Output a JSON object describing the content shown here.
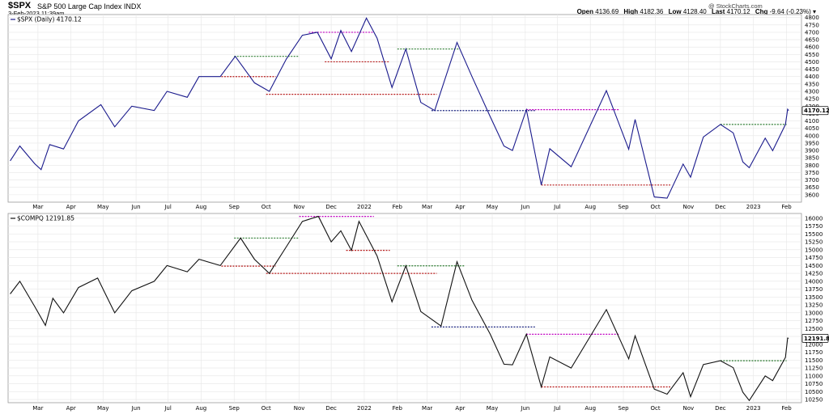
{
  "header": {
    "symbol": "$SPX",
    "name": "S&P 500 Large Cap Index INDX",
    "datetime": "3-Feb-2023 11:39am",
    "watermark": "@ StockCharts.com",
    "open_label": "Open",
    "open": "4136.69",
    "high_label": "High",
    "high": "4182.36",
    "low_label": "Low",
    "low": "4128.40",
    "last_label": "Last",
    "last": "4170.12",
    "chg_label": "Chg",
    "chg": "-9.64 (-0.23%)"
  },
  "colors": {
    "spx_line": "#1a1a8c",
    "compq_line": "#111111",
    "grid": "#e6e6e6",
    "green": "#2e7d32",
    "red": "#b71c1c",
    "magenta": "#c000c0",
    "blue": "#1a237e"
  },
  "chart_data": [
    {
      "type": "line",
      "legend": "$SPX (Daily) 4170.12",
      "last_label": "4170.12",
      "ylim": [
        3550,
        4820
      ],
      "yticks": [
        "3600",
        "3650",
        "3700",
        "3750",
        "3800",
        "3850",
        "3900",
        "3950",
        "4000",
        "4050",
        "4100",
        "4150",
        "4200",
        "4250",
        "4300",
        "4350",
        "4400",
        "4450",
        "4500",
        "4550",
        "4600",
        "4650",
        "4700",
        "4750",
        "4800"
      ],
      "x_start": "2021-02-01",
      "x_end": "2023-02-15",
      "months": [
        [
          "2021-03-01",
          "Mar"
        ],
        [
          "2021-04-01",
          "Apr"
        ],
        [
          "2021-05-01",
          "May"
        ],
        [
          "2021-06-01",
          "Jun"
        ],
        [
          "2021-07-01",
          "Jul"
        ],
        [
          "2021-08-01",
          "Aug"
        ],
        [
          "2021-09-01",
          "Sep"
        ],
        [
          "2021-10-01",
          "Oct"
        ],
        [
          "2021-11-01",
          "Nov"
        ],
        [
          "2021-12-01",
          "Dec"
        ],
        [
          "2022-01-01",
          "2022"
        ],
        [
          "2022-02-01",
          "Feb"
        ],
        [
          "2022-03-01",
          "Mar"
        ],
        [
          "2022-04-01",
          "Apr"
        ],
        [
          "2022-05-01",
          "May"
        ],
        [
          "2022-06-01",
          "Jun"
        ],
        [
          "2022-07-01",
          "Jul"
        ],
        [
          "2022-08-01",
          "Aug"
        ],
        [
          "2022-09-01",
          "Sep"
        ],
        [
          "2022-10-01",
          "Oct"
        ],
        [
          "2022-11-01",
          "Nov"
        ],
        [
          "2022-12-01",
          "Dec"
        ],
        [
          "2023-01-01",
          "2023"
        ],
        [
          "2023-02-01",
          "Feb"
        ]
      ],
      "points": [
        [
          "2021-02-03",
          3830
        ],
        [
          "2021-02-12",
          3930
        ],
        [
          "2021-02-26",
          3810
        ],
        [
          "2021-03-04",
          3770
        ],
        [
          "2021-03-12",
          3940
        ],
        [
          "2021-03-25",
          3910
        ],
        [
          "2021-04-08",
          4100
        ],
        [
          "2021-04-29",
          4210
        ],
        [
          "2021-05-12",
          4060
        ],
        [
          "2021-05-28",
          4200
        ],
        [
          "2021-06-18",
          4170
        ],
        [
          "2021-06-30",
          4300
        ],
        [
          "2021-07-19",
          4260
        ],
        [
          "2021-07-30",
          4400
        ],
        [
          "2021-08-19",
          4400
        ],
        [
          "2021-09-02",
          4537
        ],
        [
          "2021-09-20",
          4358
        ],
        [
          "2021-10-04",
          4300
        ],
        [
          "2021-10-20",
          4520
        ],
        [
          "2021-11-04",
          4680
        ],
        [
          "2021-11-18",
          4700
        ],
        [
          "2021-12-01",
          4520
        ],
        [
          "2021-12-10",
          4712
        ],
        [
          "2021-12-20",
          4570
        ],
        [
          "2022-01-03",
          4796
        ],
        [
          "2022-01-13",
          4660
        ],
        [
          "2022-01-27",
          4326
        ],
        [
          "2022-02-09",
          4587
        ],
        [
          "2022-02-23",
          4225
        ],
        [
          "2022-03-08",
          4170
        ],
        [
          "2022-03-29",
          4631
        ],
        [
          "2022-04-12",
          4400
        ],
        [
          "2022-04-29",
          4130
        ],
        [
          "2022-05-12",
          3930
        ],
        [
          "2022-05-20",
          3900
        ],
        [
          "2022-06-02",
          4176
        ],
        [
          "2022-06-16",
          3666
        ],
        [
          "2022-06-24",
          3912
        ],
        [
          "2022-07-14",
          3790
        ],
        [
          "2022-08-16",
          4305
        ],
        [
          "2022-09-06",
          3908
        ],
        [
          "2022-09-12",
          4110
        ],
        [
          "2022-09-30",
          3585
        ],
        [
          "2022-10-12",
          3577
        ],
        [
          "2022-10-27",
          3808
        ],
        [
          "2022-11-03",
          3719
        ],
        [
          "2022-11-15",
          3991
        ],
        [
          "2022-12-01",
          4076
        ],
        [
          "2022-12-13",
          4019
        ],
        [
          "2022-12-22",
          3822
        ],
        [
          "2022-12-28",
          3783
        ],
        [
          "2023-01-12",
          3983
        ],
        [
          "2023-01-19",
          3898
        ],
        [
          "2023-01-31",
          4076
        ],
        [
          "2023-02-02",
          4179
        ],
        [
          "2023-02-03",
          4170
        ]
      ],
      "levels": [
        {
          "color": "green",
          "y": 4537,
          "x0": "2021-09-01",
          "x1": "2021-10-31"
        },
        {
          "color": "red",
          "y": 4400,
          "x0": "2021-08-20",
          "x1": "2021-10-10"
        },
        {
          "color": "red",
          "y": 4280,
          "x0": "2021-10-01",
          "x1": "2022-03-10"
        },
        {
          "color": "magenta",
          "y": 4700,
          "x0": "2021-11-10",
          "x1": "2022-01-10"
        },
        {
          "color": "red",
          "y": 4500,
          "x0": "2021-11-25",
          "x1": "2022-01-25"
        },
        {
          "color": "green",
          "y": 4587,
          "x0": "2022-02-01",
          "x1": "2022-04-01"
        },
        {
          "color": "blue",
          "y": 4170,
          "x0": "2022-03-05",
          "x1": "2022-06-10"
        },
        {
          "color": "magenta",
          "y": 4176,
          "x0": "2022-06-02",
          "x1": "2022-08-28"
        },
        {
          "color": "red",
          "y": 3666,
          "x0": "2022-06-16",
          "x1": "2022-10-15"
        },
        {
          "color": "green",
          "y": 4076,
          "x0": "2022-12-01",
          "x1": "2023-02-01"
        }
      ]
    },
    {
      "type": "line",
      "legend": "$COMPQ 12191.85",
      "last_label": "12191.85",
      "ylim": [
        10150,
        16150
      ],
      "yticks": [
        "10250",
        "10500",
        "10750",
        "11000",
        "11250",
        "11500",
        "11750",
        "12000",
        "12250",
        "12500",
        "12750",
        "13000",
        "13250",
        "13500",
        "13750",
        "14000",
        "14250",
        "14500",
        "14750",
        "15000",
        "15250",
        "15500",
        "15750",
        "16000"
      ],
      "x_start": "2021-02-01",
      "x_end": "2023-02-15",
      "months": [
        [
          "2021-03-01",
          "Mar"
        ],
        [
          "2021-04-01",
          "Apr"
        ],
        [
          "2021-05-01",
          "May"
        ],
        [
          "2021-06-01",
          "Jun"
        ],
        [
          "2021-07-01",
          "Jul"
        ],
        [
          "2021-08-01",
          "Aug"
        ],
        [
          "2021-09-01",
          "Sep"
        ],
        [
          "2021-10-01",
          "Oct"
        ],
        [
          "2021-11-01",
          "Nov"
        ],
        [
          "2021-12-01",
          "Dec"
        ],
        [
          "2022-01-01",
          "2022"
        ],
        [
          "2022-02-01",
          "Feb"
        ],
        [
          "2022-03-01",
          "Mar"
        ],
        [
          "2022-04-01",
          "Apr"
        ],
        [
          "2022-05-01",
          "May"
        ],
        [
          "2022-06-01",
          "Jun"
        ],
        [
          "2022-07-01",
          "Jul"
        ],
        [
          "2022-08-01",
          "Aug"
        ],
        [
          "2022-09-01",
          "Sep"
        ],
        [
          "2022-10-01",
          "Oct"
        ],
        [
          "2022-11-01",
          "Nov"
        ],
        [
          "2022-12-01",
          "Dec"
        ],
        [
          "2023-01-01",
          "2023"
        ],
        [
          "2023-02-01",
          "Feb"
        ]
      ],
      "points": [
        [
          "2021-02-03",
          13600
        ],
        [
          "2021-02-12",
          14000
        ],
        [
          "2021-02-26",
          13200
        ],
        [
          "2021-03-08",
          12600
        ],
        [
          "2021-03-15",
          13460
        ],
        [
          "2021-03-25",
          13000
        ],
        [
          "2021-04-08",
          13800
        ],
        [
          "2021-04-26",
          14100
        ],
        [
          "2021-05-12",
          13000
        ],
        [
          "2021-05-28",
          13700
        ],
        [
          "2021-06-18",
          14000
        ],
        [
          "2021-06-30",
          14500
        ],
        [
          "2021-07-19",
          14300
        ],
        [
          "2021-07-30",
          14700
        ],
        [
          "2021-08-19",
          14500
        ],
        [
          "2021-09-07",
          15370
        ],
        [
          "2021-09-20",
          14700
        ],
        [
          "2021-10-04",
          14250
        ],
        [
          "2021-10-20",
          15100
        ],
        [
          "2021-11-04",
          15900
        ],
        [
          "2021-11-19",
          16057
        ],
        [
          "2021-12-01",
          15250
        ],
        [
          "2021-12-10",
          15600
        ],
        [
          "2021-12-20",
          14980
        ],
        [
          "2021-12-27",
          15900
        ],
        [
          "2022-01-13",
          14800
        ],
        [
          "2022-01-27",
          13350
        ],
        [
          "2022-02-09",
          14490
        ],
        [
          "2022-02-23",
          13040
        ],
        [
          "2022-03-14",
          12580
        ],
        [
          "2022-03-29",
          14620
        ],
        [
          "2022-04-12",
          13400
        ],
        [
          "2022-04-29",
          12330
        ],
        [
          "2022-05-12",
          11370
        ],
        [
          "2022-05-20",
          11350
        ],
        [
          "2022-06-02",
          12320
        ],
        [
          "2022-06-16",
          10650
        ],
        [
          "2022-06-24",
          11600
        ],
        [
          "2022-07-14",
          11250
        ],
        [
          "2022-08-16",
          13100
        ],
        [
          "2022-09-06",
          11540
        ],
        [
          "2022-09-12",
          12270
        ],
        [
          "2022-09-30",
          10580
        ],
        [
          "2022-10-12",
          10420
        ],
        [
          "2022-10-27",
          11100
        ],
        [
          "2022-11-03",
          10340
        ],
        [
          "2022-11-15",
          11360
        ],
        [
          "2022-12-01",
          11480
        ],
        [
          "2022-12-13",
          11260
        ],
        [
          "2022-12-22",
          10480
        ],
        [
          "2022-12-28",
          10220
        ],
        [
          "2023-01-12",
          11000
        ],
        [
          "2023-01-19",
          10850
        ],
        [
          "2023-01-31",
          11585
        ],
        [
          "2023-02-02",
          12200
        ],
        [
          "2023-02-03",
          12192
        ]
      ],
      "levels": [
        {
          "color": "green",
          "y": 15370,
          "x0": "2021-09-01",
          "x1": "2021-11-01"
        },
        {
          "color": "red",
          "y": 14480,
          "x0": "2021-08-20",
          "x1": "2021-10-10"
        },
        {
          "color": "red",
          "y": 14250,
          "x0": "2021-10-01",
          "x1": "2022-03-10"
        },
        {
          "color": "magenta",
          "y": 16057,
          "x0": "2021-11-01",
          "x1": "2022-01-10"
        },
        {
          "color": "red",
          "y": 14980,
          "x0": "2021-12-15",
          "x1": "2022-01-25"
        },
        {
          "color": "green",
          "y": 14490,
          "x0": "2022-02-01",
          "x1": "2022-04-05"
        },
        {
          "color": "blue",
          "y": 12550,
          "x0": "2022-03-05",
          "x1": "2022-06-10"
        },
        {
          "color": "magenta",
          "y": 12320,
          "x0": "2022-06-02",
          "x1": "2022-08-28"
        },
        {
          "color": "red",
          "y": 10650,
          "x0": "2022-06-16",
          "x1": "2022-10-15"
        },
        {
          "color": "green",
          "y": 11480,
          "x0": "2022-12-01",
          "x1": "2023-02-01"
        }
      ]
    }
  ]
}
